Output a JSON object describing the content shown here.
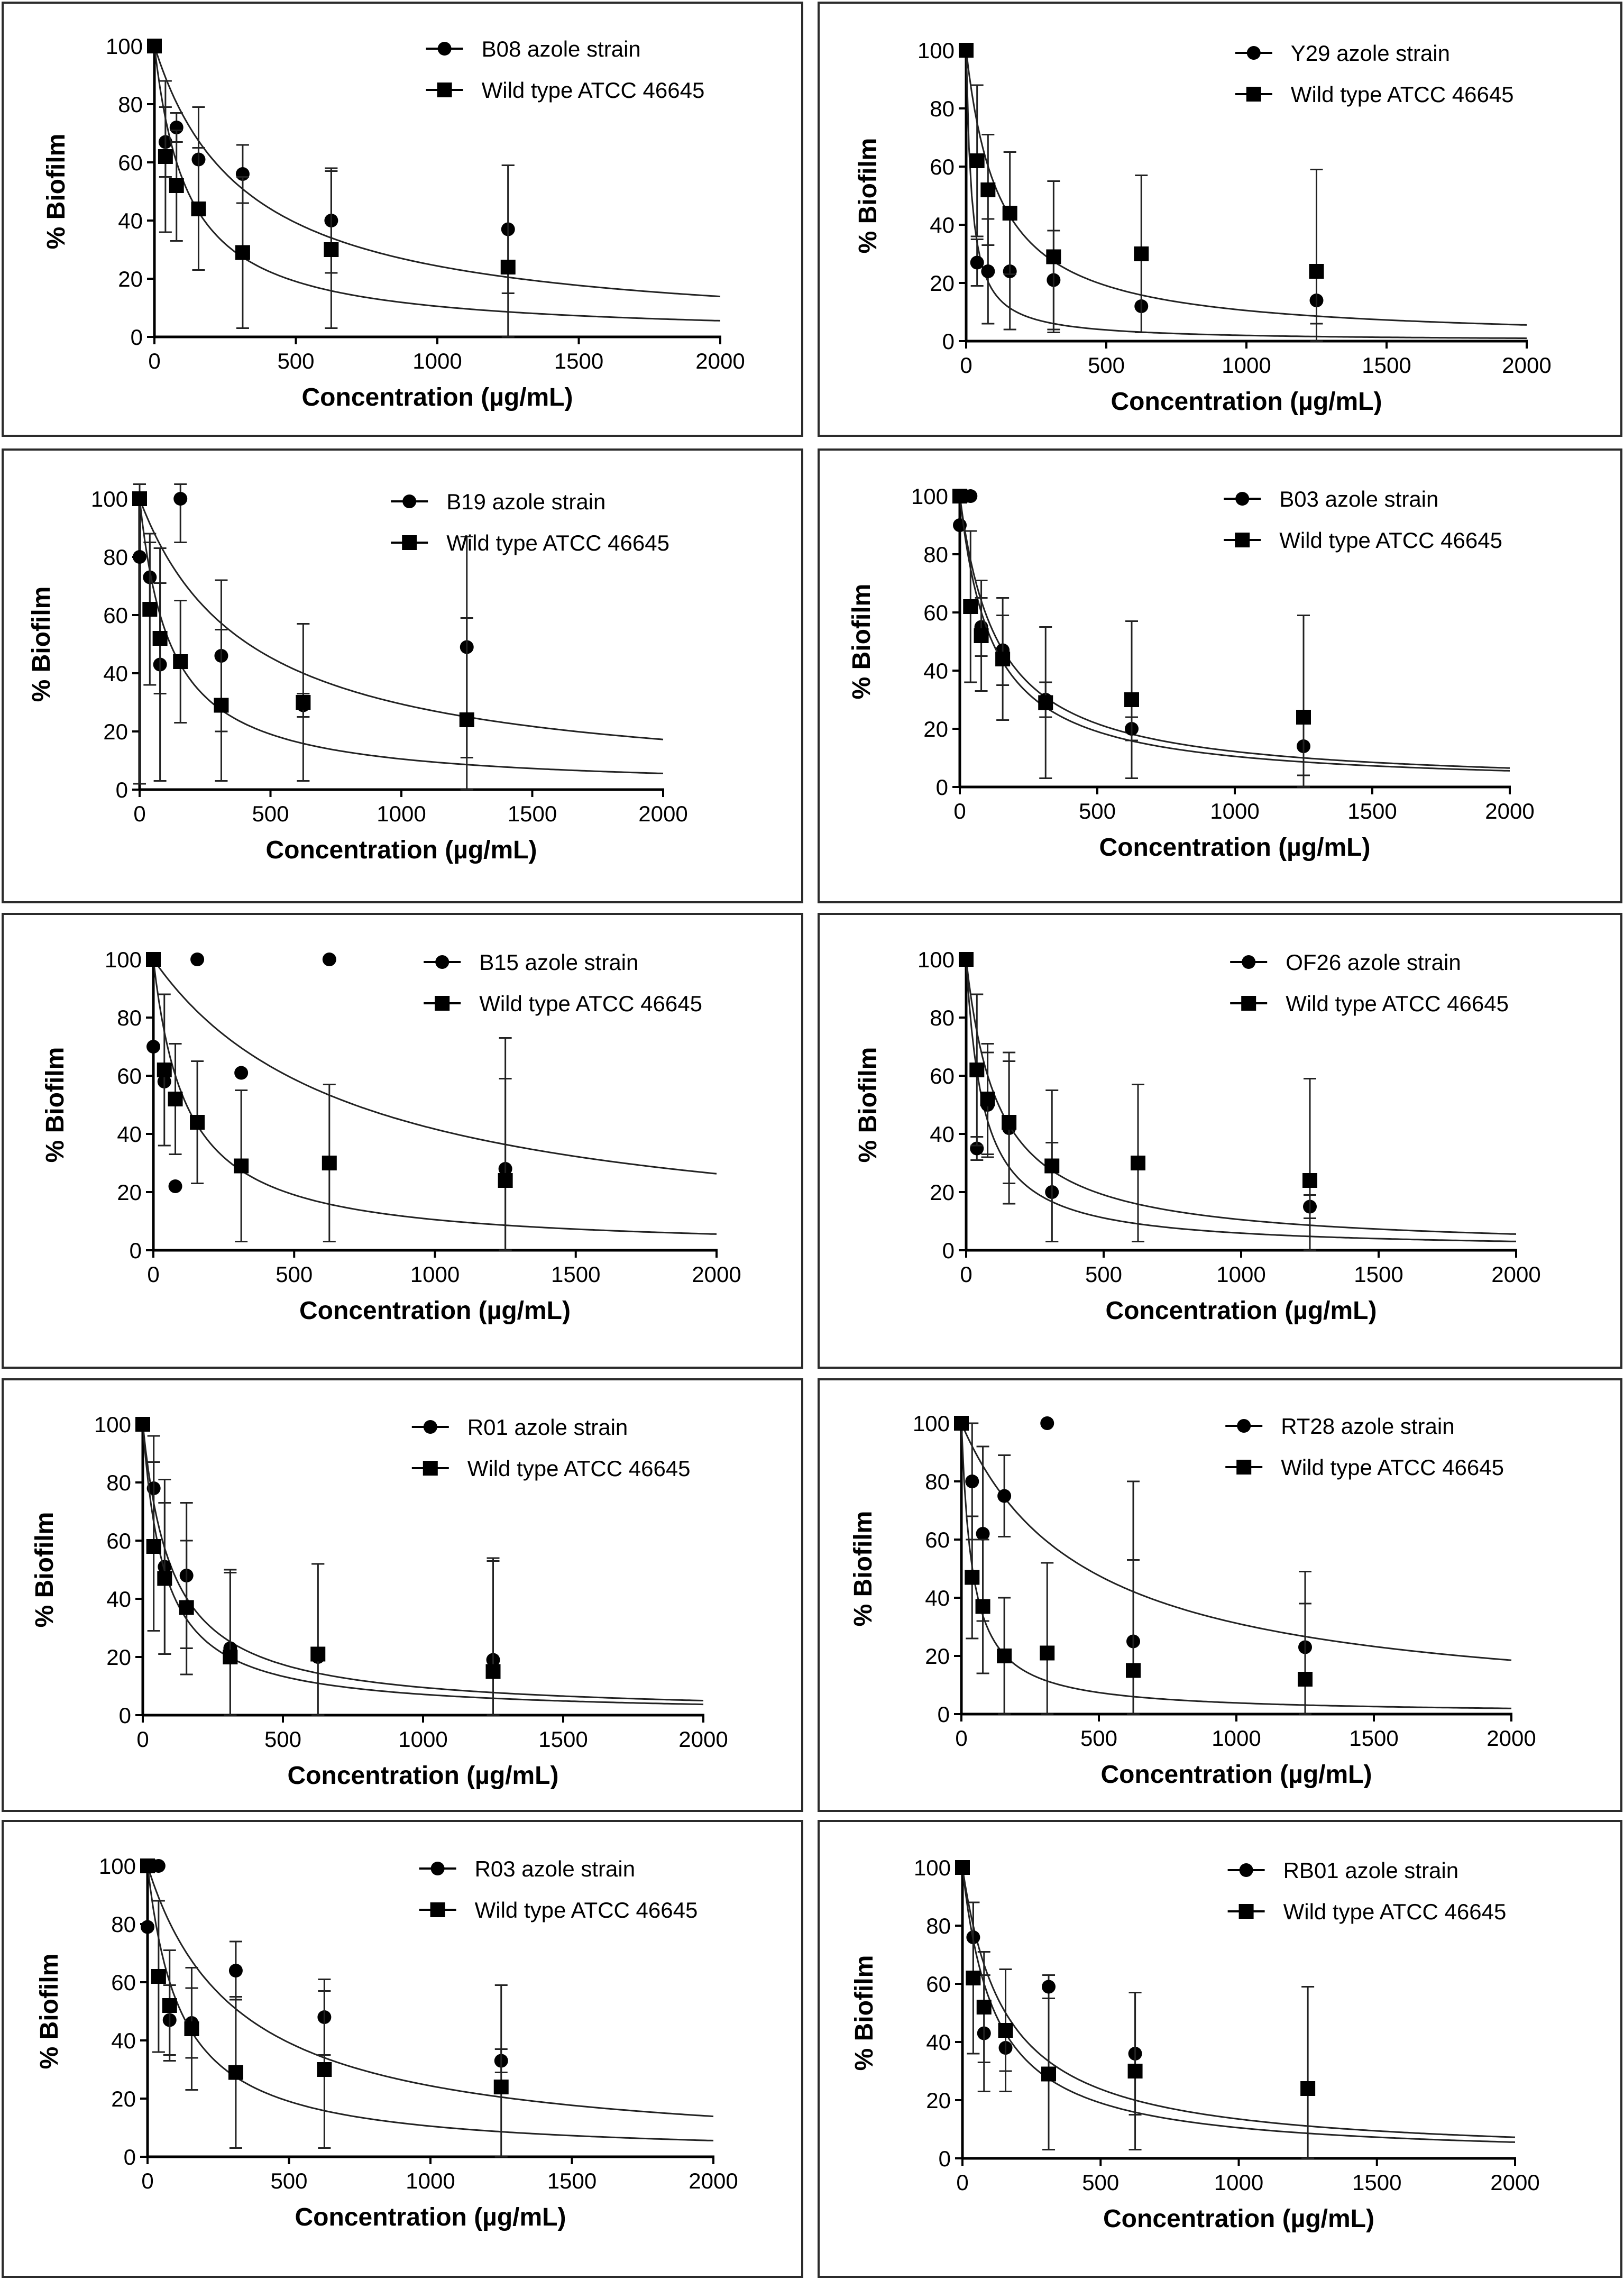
{
  "chart_data": [
    {
      "type": "scatter",
      "title": "",
      "xlabel": "Concentration (µg/mL)",
      "ylabel": "% Biofilm",
      "xlim": [
        0,
        2000
      ],
      "ylim": [
        0,
        100
      ],
      "xticks": [
        "0",
        "500",
        "1000",
        "1500",
        "2000"
      ],
      "yticks": [
        "0",
        "20",
        "40",
        "60",
        "80",
        "100"
      ],
      "legend_position": "top-right",
      "series": [
        {
          "name": "B08 azole strain",
          "marker": "circle",
          "x": [
            0,
            39,
            78,
            156,
            312,
            625,
            1250
          ],
          "y": [
            100,
            67,
            72,
            61,
            56,
            40,
            37
          ],
          "err": [
            0,
            12,
            5,
            18,
            10,
            18,
            22
          ],
          "fit_k": 0.0031
        },
        {
          "name": "Wild type ATCC 46645",
          "marker": "square",
          "x": [
            0,
            39,
            78,
            156,
            312,
            625,
            1250
          ],
          "y": [
            100,
            62,
            52,
            44,
            29,
            30,
            24
          ],
          "err": [
            0,
            26,
            19,
            21,
            26,
            27,
            35
          ],
          "fit_k": 0.0085
        }
      ]
    },
    {
      "type": "scatter",
      "title": "",
      "xlabel": "Concentration (µg/mL)",
      "ylabel": "% Biofilm",
      "xlim": [
        0,
        2000
      ],
      "ylim": [
        0,
        100
      ],
      "xticks": [
        "0",
        "500",
        "1000",
        "1500",
        "2000"
      ],
      "yticks": [
        "0",
        "20",
        "40",
        "60",
        "80",
        "100"
      ],
      "legend_position": "top-right",
      "series": [
        {
          "name": "Y29 azole strain",
          "marker": "circle",
          "x": [
            0,
            39,
            78,
            156,
            312,
            625,
            1250
          ],
          "y": [
            100,
            27,
            24,
            24,
            21,
            12,
            14
          ],
          "err": [
            0,
            8,
            18,
            20,
            17,
            0,
            8
          ],
          "fit_k": 0.05
        },
        {
          "name": "Wild type ATCC 46645",
          "marker": "square",
          "x": [
            0,
            39,
            78,
            156,
            312,
            625,
            1250
          ],
          "y": [
            100,
            62,
            52,
            44,
            29,
            30,
            24
          ],
          "err": [
            0,
            26,
            19,
            21,
            26,
            27,
            35
          ],
          "fit_k": 0.0085
        }
      ]
    },
    {
      "type": "scatter",
      "title": "",
      "xlabel": "Concentration (µg/mL)",
      "ylabel": "% Biofilm",
      "xlim": [
        0,
        2000
      ],
      "ylim": [
        0,
        100
      ],
      "xticks": [
        "0",
        "500",
        "1000",
        "1500",
        "2000"
      ],
      "yticks": [
        "0",
        "20",
        "40",
        "60",
        "80",
        "100"
      ],
      "legend_position": "top-right",
      "series": [
        {
          "name": "B19 azole strain",
          "marker": "circle",
          "x": [
            0,
            39,
            78,
            156,
            312,
            625,
            1250
          ],
          "y": [
            80,
            73,
            43,
            100,
            46,
            29,
            49
          ],
          "err": [
            78,
            12,
            40,
            15,
            26,
            4,
            38
          ],
          "fit_k": 0.0024
        },
        {
          "name": "Wild type ATCC 46645",
          "marker": "square",
          "x": [
            0,
            39,
            78,
            156,
            312,
            625,
            1250
          ],
          "y": [
            100,
            62,
            52,
            44,
            29,
            30,
            24
          ],
          "err": [
            0,
            26,
            19,
            21,
            26,
            27,
            35
          ],
          "fit_k": 0.0085
        }
      ]
    },
    {
      "type": "scatter",
      "title": "",
      "xlabel": "Concentration (µg/mL)",
      "ylabel": "% Biofilm",
      "xlim": [
        0,
        2000
      ],
      "ylim": [
        0,
        100
      ],
      "xticks": [
        "0",
        "500",
        "1000",
        "1500",
        "2000"
      ],
      "yticks": [
        "0",
        "20",
        "40",
        "60",
        "80",
        "100"
      ],
      "legend_position": "top-right",
      "series": [
        {
          "name": "B03 azole strain",
          "marker": "circle",
          "x": [
            0,
            20,
            39,
            78,
            156,
            312,
            625,
            1250
          ],
          "y": [
            90,
            100,
            100,
            55,
            47,
            30,
            20,
            14
          ],
          "err": [
            0,
            0,
            0,
            10,
            12,
            6,
            4,
            10
          ],
          "fit_k": 0.0072
        },
        {
          "name": "Wild type ATCC 46645",
          "marker": "square",
          "x": [
            0,
            39,
            78,
            156,
            312,
            625,
            1250
          ],
          "y": [
            100,
            62,
            52,
            44,
            29,
            30,
            24
          ],
          "err": [
            0,
            26,
            19,
            21,
            26,
            27,
            35
          ],
          "fit_k": 0.0085
        }
      ]
    },
    {
      "type": "scatter",
      "title": "",
      "xlabel": "Concentration (µg/mL)",
      "ylabel": "% Biofilm",
      "xlim": [
        0,
        2000
      ],
      "ylim": [
        0,
        100
      ],
      "xticks": [
        "0",
        "500",
        "1000",
        "1500",
        "2000"
      ],
      "yticks": [
        "0",
        "20",
        "40",
        "60",
        "80",
        "100"
      ],
      "legend_position": "top-right",
      "series": [
        {
          "name": "B15 azole strain",
          "marker": "circle",
          "x": [
            0,
            39,
            78,
            156,
            312,
            625,
            1250
          ],
          "y": [
            70,
            58,
            22,
            100,
            61,
            100,
            28
          ],
          "err": [
            0,
            0,
            0,
            0,
            0,
            0,
            45
          ],
          "fit_k": 0.0014
        },
        {
          "name": "Wild type ATCC 46645",
          "marker": "square",
          "x": [
            0,
            39,
            78,
            156,
            312,
            625,
            1250
          ],
          "y": [
            100,
            62,
            52,
            44,
            29,
            30,
            24
          ],
          "err": [
            0,
            26,
            19,
            21,
            26,
            27,
            35
          ],
          "fit_k": 0.0085
        }
      ]
    },
    {
      "type": "scatter",
      "title": "",
      "xlabel": "Concentration (µg/mL)",
      "ylabel": "% Biofilm",
      "xlim": [
        0,
        2000
      ],
      "ylim": [
        0,
        100
      ],
      "xticks": [
        "0",
        "500",
        "1000",
        "1500",
        "2000"
      ],
      "yticks": [
        "0",
        "20",
        "40",
        "60",
        "80",
        "100"
      ],
      "legend_position": "top-right",
      "series": [
        {
          "name": "OF26 azole strain",
          "marker": "circle",
          "x": [
            0,
            39,
            78,
            156,
            312,
            1250
          ],
          "y": [
            100,
            35,
            50,
            42,
            20,
            15
          ],
          "err": [
            0,
            4,
            18,
            26,
            17,
            4
          ],
          "fit_k": 0.016
        },
        {
          "name": "Wild type ATCC 46645",
          "marker": "square",
          "x": [
            0,
            39,
            78,
            156,
            312,
            625,
            1250
          ],
          "y": [
            100,
            62,
            52,
            44,
            29,
            30,
            24
          ],
          "err": [
            0,
            26,
            19,
            21,
            26,
            27,
            35
          ],
          "fit_k": 0.0085
        }
      ]
    },
    {
      "type": "scatter",
      "title": "",
      "xlabel": "Concentration (µg/mL)",
      "ylabel": "% Biofilm",
      "xlim": [
        0,
        2000
      ],
      "ylim": [
        0,
        100
      ],
      "xticks": [
        "0",
        "500",
        "1000",
        "1500",
        "2000"
      ],
      "yticks": [
        "0",
        "20",
        "40",
        "60",
        "80",
        "100"
      ],
      "legend_position": "top-right",
      "series": [
        {
          "name": "R01 azole strain",
          "marker": "circle",
          "x": [
            0,
            39,
            78,
            156,
            312,
            625,
            1250
          ],
          "y": [
            100,
            78,
            51,
            48,
            23,
            20,
            19
          ],
          "err": [
            0,
            18,
            30,
            25,
            27,
            32,
            35
          ],
          "fit_k": 0.0095
        },
        {
          "name": "Wild type ATCC 46645",
          "marker": "square",
          "x": [
            0,
            39,
            78,
            156,
            312,
            625,
            1250
          ],
          "y": [
            100,
            58,
            47,
            37,
            20,
            21,
            15
          ],
          "err": [
            0,
            29,
            26,
            23,
            29,
            31,
            38
          ],
          "fit_k": 0.013
        }
      ]
    },
    {
      "type": "scatter",
      "title": "",
      "xlabel": "Concentration (µg/mL)",
      "ylabel": "% Biofilm",
      "xlim": [
        0,
        2000
      ],
      "ylim": [
        0,
        100
      ],
      "xticks": [
        "0",
        "500",
        "1000",
        "1500",
        "2000"
      ],
      "yticks": [
        "0",
        "20",
        "40",
        "60",
        "80",
        "100"
      ],
      "legend_position": "top-right",
      "series": [
        {
          "name": "RT28 azole strain",
          "marker": "circle",
          "x": [
            0,
            39,
            78,
            156,
            312,
            625,
            1250
          ],
          "y": [
            100,
            80,
            62,
            75,
            100,
            25,
            23
          ],
          "err": [
            0,
            20,
            30,
            14,
            0,
            55,
            26
          ],
          "fit_k": 0.0022
        },
        {
          "name": "Wild type ATCC 46645",
          "marker": "square",
          "x": [
            0,
            39,
            78,
            156,
            312,
            625,
            1250
          ],
          "y": [
            100,
            47,
            37,
            20,
            21,
            15,
            12
          ],
          "err": [
            0,
            21,
            23,
            20,
            31,
            38,
            26
          ],
          "fit_k": 0.025
        }
      ]
    },
    {
      "type": "scatter",
      "title": "",
      "xlabel": "Concentration (µg/mL)",
      "ylabel": "% Biofilm",
      "xlim": [
        0,
        2000
      ],
      "ylim": [
        0,
        100
      ],
      "xticks": [
        "0",
        "500",
        "1000",
        "1500",
        "2000"
      ],
      "yticks": [
        "0",
        "20",
        "40",
        "60",
        "80",
        "100"
      ],
      "legend_position": "top-right",
      "series": [
        {
          "name": "R03 azole strain",
          "marker": "circle",
          "x": [
            0,
            20,
            39,
            78,
            156,
            312,
            625,
            1250
          ],
          "y": [
            79,
            100,
            100,
            47,
            46,
            64,
            48,
            33
          ],
          "err": [
            0,
            0,
            0,
            12,
            12,
            10,
            13,
            4
          ],
          "fit_k": 0.0031
        },
        {
          "name": "Wild type ATCC 46645",
          "marker": "square",
          "x": [
            0,
            39,
            78,
            156,
            312,
            625,
            1250
          ],
          "y": [
            100,
            62,
            52,
            44,
            29,
            30,
            24
          ],
          "err": [
            0,
            26,
            19,
            21,
            26,
            27,
            35
          ],
          "fit_k": 0.0085
        }
      ]
    },
    {
      "type": "scatter",
      "title": "",
      "xlabel": "Concentration (µg/mL)",
      "ylabel": "% Biofilm",
      "xlim": [
        0,
        2000
      ],
      "ylim": [
        0,
        100
      ],
      "xticks": [
        "0",
        "500",
        "1000",
        "1500",
        "2000"
      ],
      "yticks": [
        "0",
        "20",
        "40",
        "60",
        "80",
        "100"
      ],
      "legend_position": "top-right",
      "series": [
        {
          "name": "RB01 azole strain",
          "marker": "circle",
          "x": [
            0,
            39,
            78,
            156,
            312,
            625
          ],
          "y": [
            100,
            76,
            43,
            38,
            59,
            36
          ],
          "err": [
            0,
            12,
            20,
            8,
            4,
            21
          ],
          "fit_k": 0.0064
        },
        {
          "name": "Wild type ATCC 46645",
          "marker": "square",
          "x": [
            0,
            39,
            78,
            156,
            312,
            625,
            1250
          ],
          "y": [
            100,
            62,
            52,
            44,
            29,
            30,
            24
          ],
          "err": [
            0,
            26,
            19,
            21,
            26,
            27,
            35
          ],
          "fit_k": 0.0085
        }
      ]
    }
  ]
}
